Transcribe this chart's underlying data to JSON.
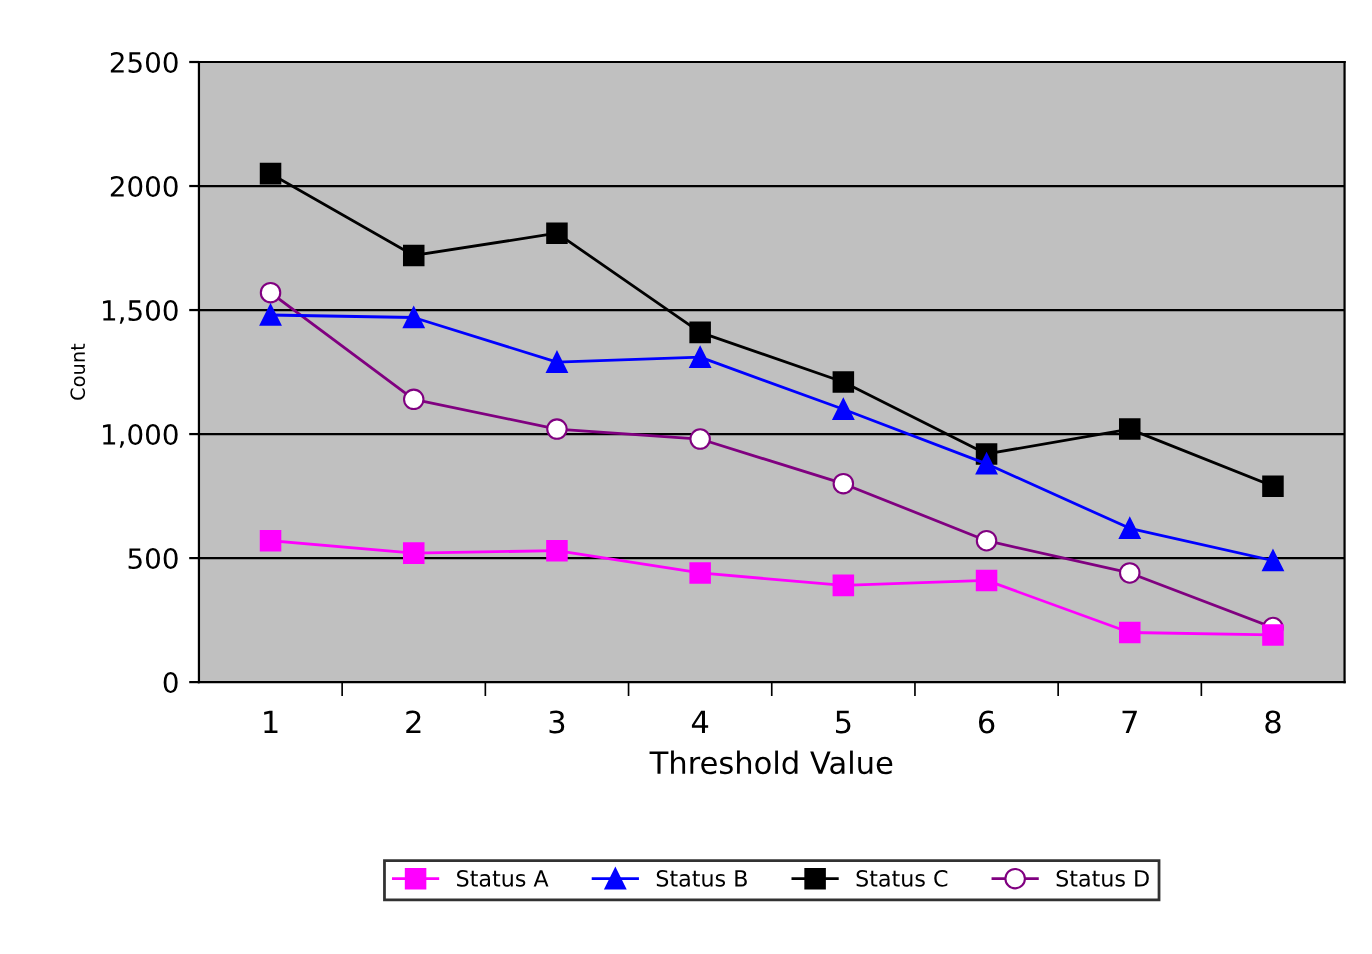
{
  "chart_data": {
    "type": "line",
    "xlabel": "Threshold Value",
    "ylabel": "Count",
    "categories": [
      "1",
      "2",
      "3",
      "4",
      "5",
      "6",
      "7",
      "8"
    ],
    "series": [
      {
        "name": "Status A",
        "color": "#ff00ff",
        "marker": "square",
        "values": [
          570,
          520,
          530,
          440,
          390,
          410,
          200,
          190
        ]
      },
      {
        "name": "Status B",
        "color": "#0000ff",
        "marker": "triangle",
        "values": [
          1480,
          1470,
          1290,
          1310,
          1100,
          880,
          620,
          490
        ]
      },
      {
        "name": "Status C",
        "color": "#000000",
        "marker": "square",
        "values": [
          2050,
          1720,
          1810,
          1410,
          1210,
          920,
          1020,
          790
        ]
      },
      {
        "name": "Status D",
        "color": "#800080",
        "marker": "circle",
        "values": [
          1570,
          1140,
          1020,
          980,
          800,
          570,
          440,
          220
        ]
      }
    ],
    "ylim": [
      0,
      2500
    ],
    "yticks": [
      0,
      500,
      {
        "value": 1000,
        "label": "1,000"
      },
      {
        "value": 1500,
        "label": "1,500"
      },
      2000,
      2500
    ],
    "grid": "y",
    "legend": "bottom"
  }
}
